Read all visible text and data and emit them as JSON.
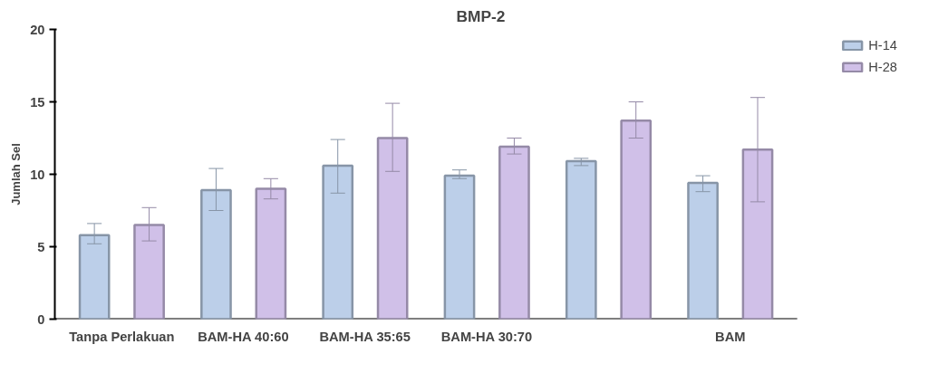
{
  "chart_data": {
    "type": "bar",
    "title": "BMP-2",
    "ylabel": "Jumlah Sel",
    "categories": [
      "Tanpa Perlakuan",
      "BAM-HA 40:60",
      "BAM-HA 35:65",
      "BAM-HA 30:70",
      null,
      "BAM"
    ],
    "series": [
      {
        "name": "H-14",
        "color": "#bccfe9",
        "values": [
          5.8,
          8.9,
          10.6,
          9.9,
          10.9,
          9.4
        ],
        "errors": [
          [
            5.2,
            6.6
          ],
          [
            7.5,
            10.4
          ],
          [
            8.7,
            12.4
          ],
          [
            9.7,
            10.3
          ],
          [
            10.6,
            11.1
          ],
          [
            8.8,
            9.9
          ]
        ]
      },
      {
        "name": "H-28",
        "color": "#d0c0e8",
        "values": [
          6.5,
          9.0,
          12.5,
          11.9,
          13.7,
          11.7
        ],
        "errors": [
          [
            5.4,
            7.7
          ],
          [
            8.3,
            9.7
          ],
          [
            10.2,
            14.9
          ],
          [
            11.4,
            12.5
          ],
          [
            12.5,
            15.0
          ],
          [
            8.1,
            15.3
          ]
        ]
      }
    ],
    "ylim": [
      0,
      20
    ],
    "yticks": [
      0,
      5,
      10,
      15,
      20
    ],
    "grid": false,
    "legend": "top right"
  }
}
